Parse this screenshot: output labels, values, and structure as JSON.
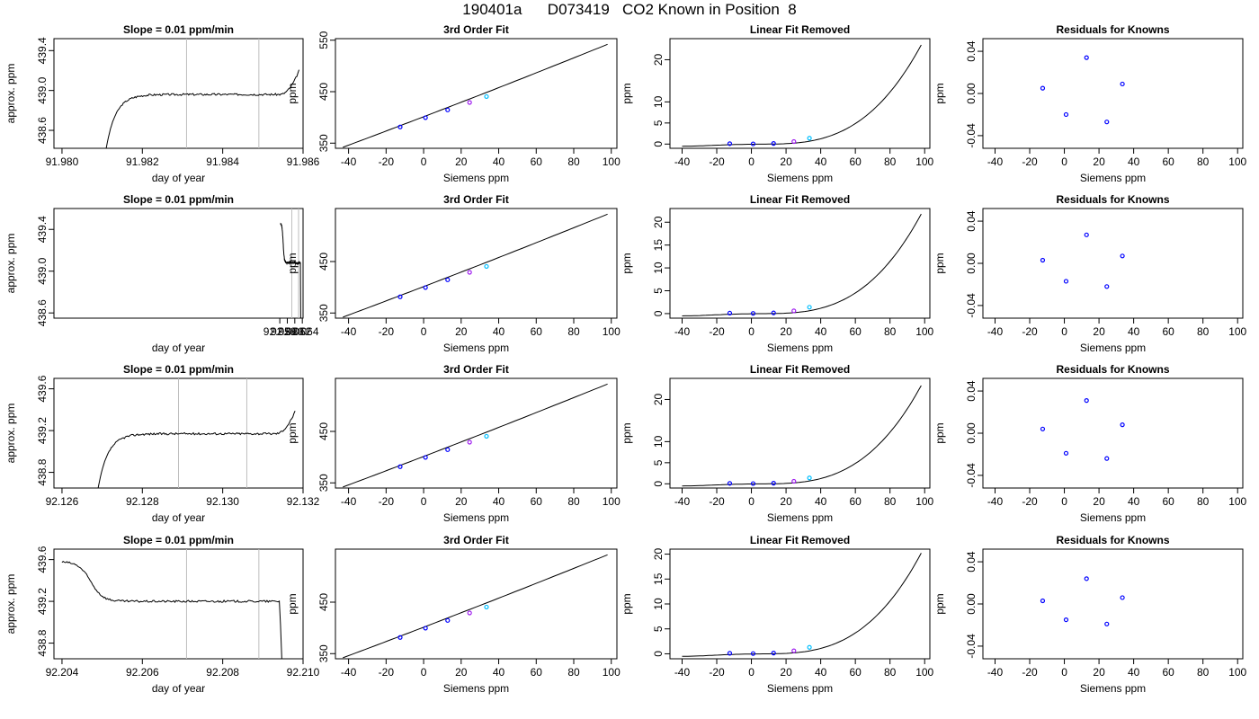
{
  "title": "190401a      D073419   CO2 Known in Position  8",
  "colors": {
    "line": "#000000",
    "gray": "#bebebe",
    "red": "#ff0000",
    "blue": "#0000ff",
    "purple": "#a020f0",
    "cyan": "#00bfff"
  },
  "chart_data": [
    {
      "type": "line",
      "panel": "time",
      "row": 0,
      "title": "Slope =  0.01  ppm/min",
      "xlabel": "day of year",
      "ylabel": "approx. ppm",
      "xlim": [
        91.9798,
        91.986
      ],
      "ylim": [
        438.42,
        439.52
      ],
      "xticks": [
        91.98,
        91.982,
        91.984,
        91.986
      ],
      "xtick_labels": [
        "91.980",
        "91.982",
        "91.984",
        "91.986"
      ],
      "yticks": [
        438.6,
        439.0,
        439.4
      ],
      "ytick_labels": [
        "438.6",
        "439.0",
        "439.4"
      ],
      "vlines": [
        91.9831,
        91.9849
      ],
      "shape": "rise",
      "x_start": 91.9811,
      "x_end": 91.9859,
      "y_low": 438.42,
      "plateau": 438.96,
      "y_end": 439.2,
      "x_stop": null
    },
    {
      "type": "line",
      "panel": "time",
      "row": 1,
      "title": "Slope =  0.01  ppm/min",
      "xlabel": "day of year",
      "ylabel": "approx. ppm",
      "xlim": [
        91.9978,
        92.0642
      ],
      "ylim": [
        438.55,
        439.6
      ],
      "xticks": [
        92.058,
        92.06,
        92.062,
        92.064
      ],
      "xtick_labels": [
        "92.058",
        "92.060",
        "92.062",
        "92.064"
      ],
      "yticks": [
        438.6,
        439.0,
        439.4
      ],
      "ytick_labels": [
        "438.6",
        "439.0",
        "439.4"
      ],
      "vlines": [
        92.0612,
        92.063
      ],
      "shape": "fall",
      "x_start": 92.0582,
      "x_end": 92.0636,
      "y_low": 438.55,
      "plateau": 439.08,
      "y_end": 439.06,
      "x_stop": 92.0636
    },
    {
      "type": "line",
      "panel": "time",
      "row": 2,
      "title": "Slope =  0.01  ppm/min",
      "xlabel": "day of year",
      "ylabel": "approx. ppm",
      "xlim": [
        92.1258,
        92.132
      ],
      "ylim": [
        438.65,
        439.7
      ],
      "xticks": [
        92.126,
        92.128,
        92.13,
        92.132
      ],
      "xtick_labels": [
        "92.126",
        "92.128",
        "92.130",
        "92.132"
      ],
      "yticks": [
        438.8,
        439.2,
        439.6
      ],
      "ytick_labels": [
        "438.8",
        "439.2",
        "439.6"
      ],
      "vlines": [
        92.1289,
        92.1306
      ],
      "shape": "rise",
      "x_start": 92.1269,
      "x_end": 92.1318,
      "y_low": 438.65,
      "plateau": 439.17,
      "y_end": 439.38,
      "x_stop": null
    },
    {
      "type": "line",
      "panel": "time",
      "row": 3,
      "title": "Slope =  0.01  ppm/min",
      "xlabel": "day of year",
      "ylabel": "approx. ppm",
      "xlim": [
        92.2038,
        92.21
      ],
      "ylim": [
        438.65,
        439.7
      ],
      "xticks": [
        92.204,
        92.206,
        92.208,
        92.21
      ],
      "xtick_labels": [
        "92.204",
        "92.206",
        "92.208",
        "92.210"
      ],
      "yticks": [
        438.8,
        439.2,
        439.6
      ],
      "ytick_labels": [
        "438.8",
        "439.2",
        "439.6"
      ],
      "vlines": [
        92.2071,
        92.2089
      ],
      "shape": "fall",
      "x_start": 92.204,
      "x_end": 92.2095,
      "y_low": 438.65,
      "plateau": 439.2,
      "y_end": 439.2,
      "x_stop": 92.2095
    },
    {
      "type": "line",
      "panel": "fit",
      "row": 0,
      "title": "3rd Order Fit",
      "xlabel": "Siemens ppm",
      "ylabel": "ppm",
      "xlim": [
        -47,
        103
      ],
      "ylim": [
        340,
        553
      ],
      "xticks": [
        -40,
        -20,
        0,
        20,
        40,
        60,
        80,
        100
      ],
      "xtick_labels": [
        "-40",
        "-20",
        "0",
        "20",
        "40",
        "60",
        "80",
        "100"
      ],
      "yticks": [
        350,
        450,
        550
      ],
      "ytick_labels": [
        "350",
        "450",
        "550"
      ],
      "curve": {
        "x0": -43,
        "x1": 98,
        "y0": 342,
        "y1": 542
      },
      "points": [
        {
          "x": -12.5,
          "y": 381.5
        },
        {
          "x": 1,
          "y": 399.5
        },
        {
          "x": 12.8,
          "y": 414.5
        },
        {
          "x": 24.5,
          "y": 429
        },
        {
          "x": 33.5,
          "y": 440.5
        }
      ]
    },
    {
      "type": "line",
      "panel": "fit",
      "row": 1,
      "title": "3rd Order Fit",
      "xlabel": "Siemens ppm",
      "ylabel": "ppm",
      "xlim": [
        -47,
        103
      ],
      "ylim": [
        340,
        553
      ],
      "xticks": [
        -40,
        -20,
        0,
        20,
        40,
        60,
        80,
        100
      ],
      "xtick_labels": [
        "-40",
        "-20",
        "0",
        "20",
        "40",
        "60",
        "80",
        "100"
      ],
      "yticks": [
        350,
        450
      ],
      "ytick_labels": [
        "350",
        "450"
      ],
      "curve": {
        "x0": -43,
        "x1": 98,
        "y0": 342,
        "y1": 542
      },
      "points": [
        {
          "x": -12.5,
          "y": 381.5
        },
        {
          "x": 1,
          "y": 399.5
        },
        {
          "x": 12.8,
          "y": 414.5
        },
        {
          "x": 24.5,
          "y": 429
        },
        {
          "x": 33.5,
          "y": 440.5
        }
      ]
    },
    {
      "type": "line",
      "panel": "fit",
      "row": 2,
      "title": "3rd Order Fit",
      "xlabel": "Siemens ppm",
      "ylabel": "ppm",
      "xlim": [
        -47,
        103
      ],
      "ylim": [
        340,
        553
      ],
      "xticks": [
        -40,
        -20,
        0,
        20,
        40,
        60,
        80,
        100
      ],
      "xtick_labels": [
        "-40",
        "-20",
        "0",
        "20",
        "40",
        "60",
        "80",
        "100"
      ],
      "yticks": [
        350,
        450
      ],
      "ytick_labels": [
        "350",
        "450"
      ],
      "curve": {
        "x0": -43,
        "x1": 98,
        "y0": 342,
        "y1": 542
      },
      "points": [
        {
          "x": -12.5,
          "y": 381.5
        },
        {
          "x": 1,
          "y": 399.5
        },
        {
          "x": 12.8,
          "y": 414.5
        },
        {
          "x": 24.5,
          "y": 429
        },
        {
          "x": 33.5,
          "y": 440.5
        }
      ]
    },
    {
      "type": "line",
      "panel": "fit",
      "row": 3,
      "title": "3rd Order Fit",
      "xlabel": "Siemens ppm",
      "ylabel": "ppm",
      "xlim": [
        -47,
        103
      ],
      "ylim": [
        340,
        553
      ],
      "xticks": [
        -40,
        -20,
        0,
        20,
        40,
        60,
        80,
        100
      ],
      "xtick_labels": [
        "-40",
        "-20",
        "0",
        "20",
        "40",
        "60",
        "80",
        "100"
      ],
      "yticks": [
        350,
        450
      ],
      "ytick_labels": [
        "350",
        "450"
      ],
      "curve": {
        "x0": -43,
        "x1": 98,
        "y0": 342,
        "y1": 542
      },
      "points": [
        {
          "x": -12.5,
          "y": 381.5
        },
        {
          "x": 1,
          "y": 399.5
        },
        {
          "x": 12.8,
          "y": 414.5
        },
        {
          "x": 24.5,
          "y": 429
        },
        {
          "x": 33.5,
          "y": 440.5
        }
      ]
    },
    {
      "type": "line",
      "panel": "lin",
      "row": 0,
      "title": "Linear Fit Removed",
      "xlabel": "Siemens ppm",
      "ylabel": "ppm",
      "xlim": [
        -47,
        103
      ],
      "ylim": [
        -1,
        25
      ],
      "xticks": [
        -40,
        -20,
        0,
        20,
        40,
        60,
        80,
        100
      ],
      "xtick_labels": [
        "-40",
        "-20",
        "0",
        "20",
        "40",
        "60",
        "80",
        "100"
      ],
      "yticks": [
        0,
        5,
        10,
        20
      ],
      "ytick_labels": [
        "0",
        "5",
        "10",
        "20"
      ],
      "curve_end": 23.5,
      "points": [
        {
          "x": -12.5,
          "y": 0.1
        },
        {
          "x": 1,
          "y": 0.05
        },
        {
          "x": 12.8,
          "y": 0.15
        },
        {
          "x": 24.5,
          "y": 0.6
        },
        {
          "x": 33.5,
          "y": 1.4
        }
      ]
    },
    {
      "type": "line",
      "panel": "lin",
      "row": 1,
      "title": "Linear Fit Removed",
      "xlabel": "Siemens ppm",
      "ylabel": "ppm",
      "xlim": [
        -47,
        103
      ],
      "ylim": [
        -1,
        23
      ],
      "xticks": [
        -40,
        -20,
        0,
        20,
        40,
        60,
        80,
        100
      ],
      "xtick_labels": [
        "-40",
        "-20",
        "0",
        "20",
        "40",
        "60",
        "80",
        "100"
      ],
      "yticks": [
        0,
        5,
        10,
        15,
        20
      ],
      "ytick_labels": [
        "0",
        "5",
        "10",
        "15",
        "20"
      ],
      "curve_end": 21.8,
      "points": [
        {
          "x": -12.5,
          "y": 0.1
        },
        {
          "x": 1,
          "y": 0.05
        },
        {
          "x": 12.8,
          "y": 0.15
        },
        {
          "x": 24.5,
          "y": 0.6
        },
        {
          "x": 33.5,
          "y": 1.4
        }
      ]
    },
    {
      "type": "line",
      "panel": "lin",
      "row": 2,
      "title": "Linear Fit Removed",
      "xlabel": "Siemens ppm",
      "ylabel": "ppm",
      "xlim": [
        -47,
        103
      ],
      "ylim": [
        -1,
        25
      ],
      "xticks": [
        -40,
        -20,
        0,
        20,
        40,
        60,
        80,
        100
      ],
      "xtick_labels": [
        "-40",
        "-20",
        "0",
        "20",
        "40",
        "60",
        "80",
        "100"
      ],
      "yticks": [
        0,
        5,
        10,
        20
      ],
      "ytick_labels": [
        "0",
        "5",
        "10",
        "20"
      ],
      "curve_end": 23.3,
      "points": [
        {
          "x": -12.5,
          "y": 0.1
        },
        {
          "x": 1,
          "y": 0.05
        },
        {
          "x": 12.8,
          "y": 0.15
        },
        {
          "x": 24.5,
          "y": 0.6
        },
        {
          "x": 33.5,
          "y": 1.4
        }
      ]
    },
    {
      "type": "line",
      "panel": "lin",
      "row": 3,
      "title": "Linear Fit Removed",
      "xlabel": "Siemens ppm",
      "ylabel": "ppm",
      "xlim": [
        -47,
        103
      ],
      "ylim": [
        -1,
        21
      ],
      "xticks": [
        -40,
        -20,
        0,
        20,
        40,
        60,
        80,
        100
      ],
      "xtick_labels": [
        "-40",
        "-20",
        "0",
        "20",
        "40",
        "60",
        "80",
        "100"
      ],
      "yticks": [
        0,
        5,
        10,
        15,
        20
      ],
      "ytick_labels": [
        "0",
        "5",
        "10",
        "15",
        "20"
      ],
      "curve_end": 20.2,
      "points": [
        {
          "x": -12.5,
          "y": 0.1
        },
        {
          "x": 1,
          "y": 0.05
        },
        {
          "x": 12.8,
          "y": 0.15
        },
        {
          "x": 24.5,
          "y": 0.6
        },
        {
          "x": 33.5,
          "y": 1.3
        }
      ]
    },
    {
      "type": "scatter",
      "panel": "res",
      "row": 0,
      "title": "Residuals for Knowns",
      "xlabel": "Siemens ppm",
      "ylabel": "ppm",
      "xlim": [
        -47,
        103
      ],
      "ylim": [
        -0.052,
        0.052
      ],
      "xticks": [
        -40,
        -20,
        0,
        20,
        40,
        60,
        80,
        100
      ],
      "xtick_labels": [
        "-40",
        "-20",
        "0",
        "20",
        "40",
        "60",
        "80",
        "100"
      ],
      "yticks": [
        -0.04,
        0.0,
        0.04
      ],
      "ytick_labels": [
        "-0.04",
        "0.00",
        "0.04"
      ],
      "points": [
        {
          "x": -12.5,
          "y": 0.005
        },
        {
          "x": 1,
          "y": -0.02
        },
        {
          "x": 12.8,
          "y": 0.034
        },
        {
          "x": 24.5,
          "y": -0.027
        },
        {
          "x": 33.5,
          "y": 0.009
        }
      ]
    },
    {
      "type": "scatter",
      "panel": "res",
      "row": 1,
      "title": "Residuals for Knowns",
      "xlabel": "Siemens ppm",
      "ylabel": "ppm",
      "xlim": [
        -47,
        103
      ],
      "ylim": [
        -0.052,
        0.052
      ],
      "xticks": [
        -40,
        -20,
        0,
        20,
        40,
        60,
        80,
        100
      ],
      "xtick_labels": [
        "-40",
        "-20",
        "0",
        "20",
        "40",
        "60",
        "80",
        "100"
      ],
      "yticks": [
        -0.04,
        0.0,
        0.04
      ],
      "ytick_labels": [
        "-0.04",
        "0.00",
        "0.04"
      ],
      "points": [
        {
          "x": -12.5,
          "y": 0.003
        },
        {
          "x": 1,
          "y": -0.017
        },
        {
          "x": 12.8,
          "y": 0.027
        },
        {
          "x": 24.5,
          "y": -0.022
        },
        {
          "x": 33.5,
          "y": 0.007
        }
      ]
    },
    {
      "type": "scatter",
      "panel": "res",
      "row": 2,
      "title": "Residuals for Knowns",
      "xlabel": "Siemens ppm",
      "ylabel": "ppm",
      "xlim": [
        -47,
        103
      ],
      "ylim": [
        -0.052,
        0.052
      ],
      "xticks": [
        -40,
        -20,
        0,
        20,
        40,
        60,
        80,
        100
      ],
      "xtick_labels": [
        "-40",
        "-20",
        "0",
        "20",
        "40",
        "60",
        "80",
        "100"
      ],
      "yticks": [
        -0.04,
        0.0,
        0.04
      ],
      "ytick_labels": [
        "-0.04",
        "0.00",
        "0.04"
      ],
      "points": [
        {
          "x": -12.5,
          "y": 0.004
        },
        {
          "x": 1,
          "y": -0.019
        },
        {
          "x": 12.8,
          "y": 0.031
        },
        {
          "x": 24.5,
          "y": -0.024
        },
        {
          "x": 33.5,
          "y": 0.008
        }
      ]
    },
    {
      "type": "scatter",
      "panel": "res",
      "row": 3,
      "title": "Residuals for Knowns",
      "xlabel": "Siemens ppm",
      "ylabel": "ppm",
      "xlim": [
        -47,
        103
      ],
      "ylim": [
        -0.052,
        0.052
      ],
      "xticks": [
        -40,
        -20,
        0,
        20,
        40,
        60,
        80,
        100
      ],
      "xtick_labels": [
        "-40",
        "-20",
        "0",
        "20",
        "40",
        "60",
        "80",
        "100"
      ],
      "yticks": [
        -0.04,
        0.0,
        0.04
      ],
      "ytick_labels": [
        "-0.04",
        "0.00",
        "0.04"
      ],
      "points": [
        {
          "x": -12.5,
          "y": 0.003
        },
        {
          "x": 1,
          "y": -0.015
        },
        {
          "x": 12.8,
          "y": 0.024
        },
        {
          "x": 24.5,
          "y": -0.019
        },
        {
          "x": 33.5,
          "y": 0.006
        }
      ]
    }
  ]
}
